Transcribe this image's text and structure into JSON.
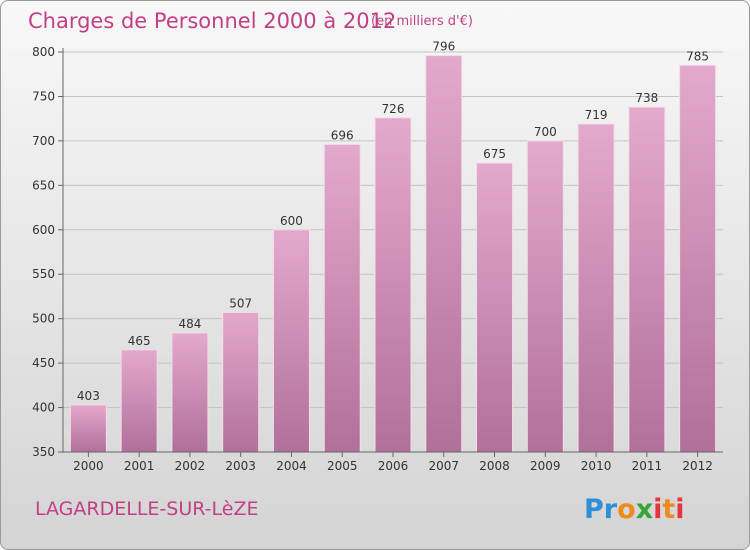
{
  "chart_data": {
    "type": "bar",
    "title": "Charges de Personnel 2000 à 2012",
    "subtitle": "(en milliers d'€)",
    "categories": [
      "2000",
      "2001",
      "2002",
      "2003",
      "2004",
      "2005",
      "2006",
      "2007",
      "2008",
      "2009",
      "2010",
      "2011",
      "2012"
    ],
    "values": [
      403,
      465,
      484,
      507,
      600,
      696,
      726,
      796,
      675,
      700,
      719,
      738,
      785
    ],
    "ylim": [
      350,
      800
    ],
    "yticks": [
      350,
      400,
      450,
      500,
      550,
      600,
      650,
      700,
      750,
      800
    ],
    "grid": true,
    "bar_color": "#d88fb8"
  },
  "footer": {
    "place": "LAGARDELLE-SUR-LèZE",
    "logo_letters": [
      "P",
      "r",
      "o",
      "x",
      "i",
      "t",
      "i"
    ],
    "logo_colors": [
      "#2d8fd6",
      "#2d8fd6",
      "#f08a1c",
      "#37a63a",
      "#e5353f",
      "#f08a1c",
      "#e5353f"
    ]
  },
  "colors": {
    "accent": "#c23f86"
  }
}
